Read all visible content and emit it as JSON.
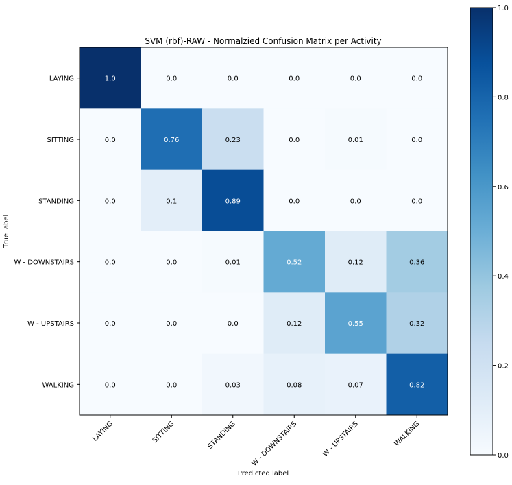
{
  "chart_data": {
    "type": "heatmap",
    "title": "SVM (rbf)-RAW - Normalzied Confusion Matrix per Activity",
    "xlabel": "Predicted label",
    "ylabel": "True label",
    "x_categories": [
      "LAYING",
      "SITTING",
      "STANDING",
      "W - DOWNSTAIRS",
      "W - UPSTAIRS",
      "WALKING"
    ],
    "y_categories": [
      "LAYING",
      "SITTING",
      "STANDING",
      "W - DOWNSTAIRS",
      "W - UPSTAIRS",
      "WALKING"
    ],
    "values": [
      [
        1.0,
        0.0,
        0.0,
        0.0,
        0.0,
        0.0
      ],
      [
        0.0,
        0.76,
        0.23,
        0.0,
        0.01,
        0.0
      ],
      [
        0.0,
        0.1,
        0.89,
        0.0,
        0.0,
        0.0
      ],
      [
        0.0,
        0.0,
        0.01,
        0.52,
        0.12,
        0.36
      ],
      [
        0.0,
        0.0,
        0.0,
        0.12,
        0.55,
        0.32
      ],
      [
        0.0,
        0.0,
        0.03,
        0.08,
        0.07,
        0.82
      ]
    ],
    "value_labels": [
      [
        "1.0",
        "0.0",
        "0.0",
        "0.0",
        "0.0",
        "0.0"
      ],
      [
        "0.0",
        "0.76",
        "0.23",
        "0.0",
        "0.01",
        "0.0"
      ],
      [
        "0.0",
        "0.1",
        "0.89",
        "0.0",
        "0.0",
        "0.0"
      ],
      [
        "0.0",
        "0.0",
        "0.01",
        "0.52",
        "0.12",
        "0.36"
      ],
      [
        "0.0",
        "0.0",
        "0.0",
        "0.12",
        "0.55",
        "0.32"
      ],
      [
        "0.0",
        "0.0",
        "0.03",
        "0.08",
        "0.07",
        "0.82"
      ]
    ],
    "colormap": "Blues",
    "colorbar": {
      "range": [
        0.0,
        1.0
      ],
      "ticks": [
        "0.0",
        "0.2",
        "0.4",
        "0.6",
        "0.8",
        "1.0"
      ]
    },
    "text_color_light": "#ffffff",
    "text_color_dark": "#000000",
    "grid": false
  }
}
